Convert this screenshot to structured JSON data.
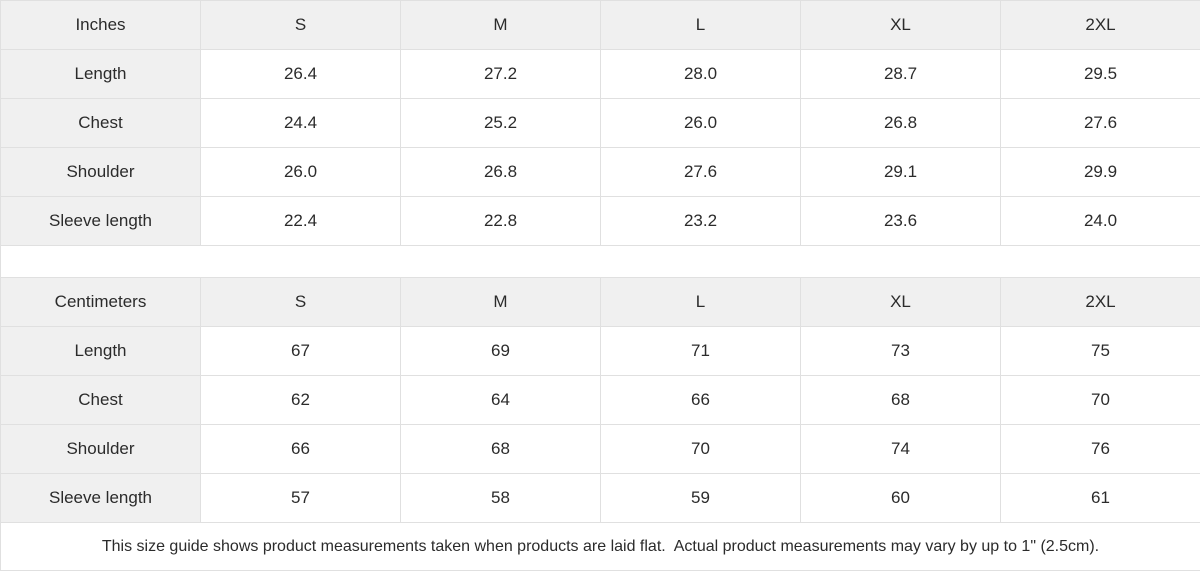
{
  "colors": {
    "header_bg": "#f0f0f0",
    "border": "#e0e0e0",
    "text": "#2b2b2b",
    "cell_bg": "#ffffff"
  },
  "size_columns": [
    "S",
    "M",
    "L",
    "XL",
    "2XL"
  ],
  "tables": [
    {
      "unit_label": "Inches",
      "rows": [
        {
          "label": "Length",
          "values": [
            "26.4",
            "27.2",
            "28.0",
            "28.7",
            "29.5"
          ]
        },
        {
          "label": "Chest",
          "values": [
            "24.4",
            "25.2",
            "26.0",
            "26.8",
            "27.6"
          ]
        },
        {
          "label": "Shoulder",
          "values": [
            "26.0",
            "26.8",
            "27.6",
            "29.1",
            "29.9"
          ]
        },
        {
          "label": "Sleeve length",
          "values": [
            "22.4",
            "22.8",
            "23.2",
            "23.6",
            "24.0"
          ]
        }
      ]
    },
    {
      "unit_label": "Centimeters",
      "rows": [
        {
          "label": "Length",
          "values": [
            "67",
            "69",
            "71",
            "73",
            "75"
          ]
        },
        {
          "label": "Chest",
          "values": [
            "62",
            "64",
            "66",
            "68",
            "70"
          ]
        },
        {
          "label": "Shoulder",
          "values": [
            "66",
            "68",
            "70",
            "74",
            "76"
          ]
        },
        {
          "label": "Sleeve length",
          "values": [
            "57",
            "58",
            "59",
            "60",
            "61"
          ]
        }
      ]
    }
  ],
  "footer_note": "This size guide shows product measurements taken when products are laid flat.  Actual product measurements may vary by up to 1\" (2.5cm)."
}
